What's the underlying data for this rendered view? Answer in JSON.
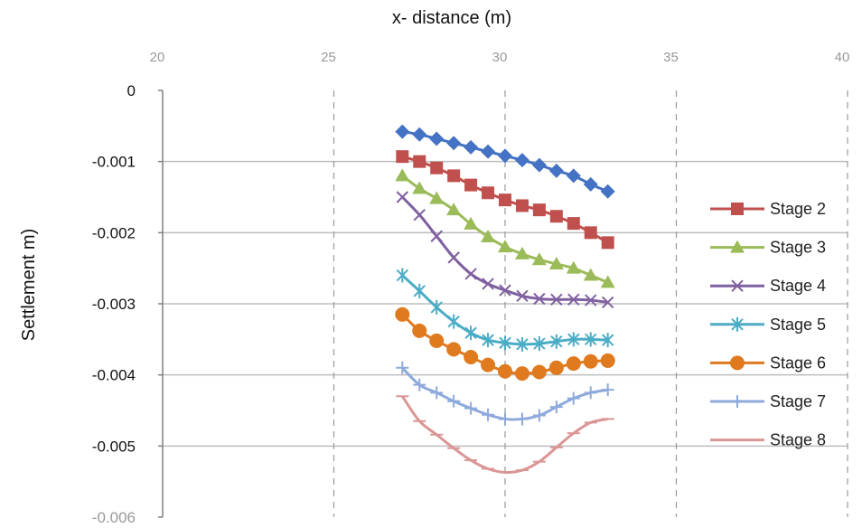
{
  "chart_data": {
    "type": "line",
    "xlabel": "x- distance (m)",
    "ylabel": "Settlement m)",
    "xlim": [
      20,
      40
    ],
    "ylim": [
      -0.006,
      0
    ],
    "x_ticks": [
      "20",
      "25",
      "30",
      "35",
      "40"
    ],
    "y_ticks": [
      "0",
      "-0.001",
      "-0.002",
      "-0.003",
      "-0.004",
      "-0.005",
      "-0.006"
    ],
    "grid": "major both",
    "legend_position": "right",
    "x": [
      27,
      27.5,
      28,
      28.5,
      29,
      29.5,
      30,
      30.5,
      31,
      31.5,
      32,
      32.5,
      33
    ],
    "series": [
      {
        "name": "",
        "color": "#4472C4",
        "marker": "diamond",
        "values": [
          -0.00058,
          -0.00062,
          -0.00068,
          -0.00074,
          -0.0008,
          -0.00086,
          -0.00092,
          -0.00098,
          -0.00105,
          -0.00113,
          -0.0012,
          -0.00132,
          -0.00142
        ]
      },
      {
        "name": "Stage 2",
        "color": "#C0504D",
        "marker": "square",
        "values": [
          -0.00093,
          -0.001,
          -0.00109,
          -0.0012,
          -0.00133,
          -0.00144,
          -0.00154,
          -0.00162,
          -0.00168,
          -0.00177,
          -0.00187,
          -0.002,
          -0.00214
        ]
      },
      {
        "name": "Stage 3",
        "color": "#9BBB59",
        "marker": "triangle",
        "values": [
          -0.0012,
          -0.00138,
          -0.00152,
          -0.00168,
          -0.00188,
          -0.00206,
          -0.0022,
          -0.0023,
          -0.00238,
          -0.00244,
          -0.0025,
          -0.0026,
          -0.0027
        ]
      },
      {
        "name": "Stage 4",
        "color": "#7F60A0",
        "marker": "x",
        "values": [
          -0.0015,
          -0.00175,
          -0.00205,
          -0.00235,
          -0.00258,
          -0.00272,
          -0.00281,
          -0.00289,
          -0.00293,
          -0.00294,
          -0.00294,
          -0.00295,
          -0.00298
        ]
      },
      {
        "name": "Stage 5",
        "color": "#4BACC6",
        "marker": "star",
        "values": [
          -0.0026,
          -0.00282,
          -0.00305,
          -0.00325,
          -0.00341,
          -0.00351,
          -0.00355,
          -0.00357,
          -0.00356,
          -0.00353,
          -0.0035,
          -0.0035,
          -0.00351
        ]
      },
      {
        "name": "Stage 6",
        "color": "#E07A1F",
        "marker": "circle",
        "values": [
          -0.00315,
          -0.00338,
          -0.00352,
          -0.00364,
          -0.00375,
          -0.00386,
          -0.00395,
          -0.00398,
          -0.00396,
          -0.0039,
          -0.00384,
          -0.00381,
          -0.0038
        ]
      },
      {
        "name": "Stage 7",
        "color": "#8EA9DB",
        "marker": "plus",
        "values": [
          -0.0039,
          -0.00414,
          -0.00425,
          -0.00437,
          -0.00447,
          -0.00456,
          -0.00462,
          -0.00462,
          -0.00457,
          -0.00445,
          -0.00433,
          -0.00425,
          -0.00421
        ]
      },
      {
        "name": "Stage 8",
        "color": "#D99694",
        "marker": "dash",
        "values": [
          -0.0043,
          -0.00465,
          -0.00484,
          -0.00503,
          -0.0052,
          -0.00532,
          -0.00537,
          -0.00534,
          -0.00522,
          -0.00502,
          -0.00482,
          -0.00467,
          -0.00462
        ]
      }
    ]
  }
}
